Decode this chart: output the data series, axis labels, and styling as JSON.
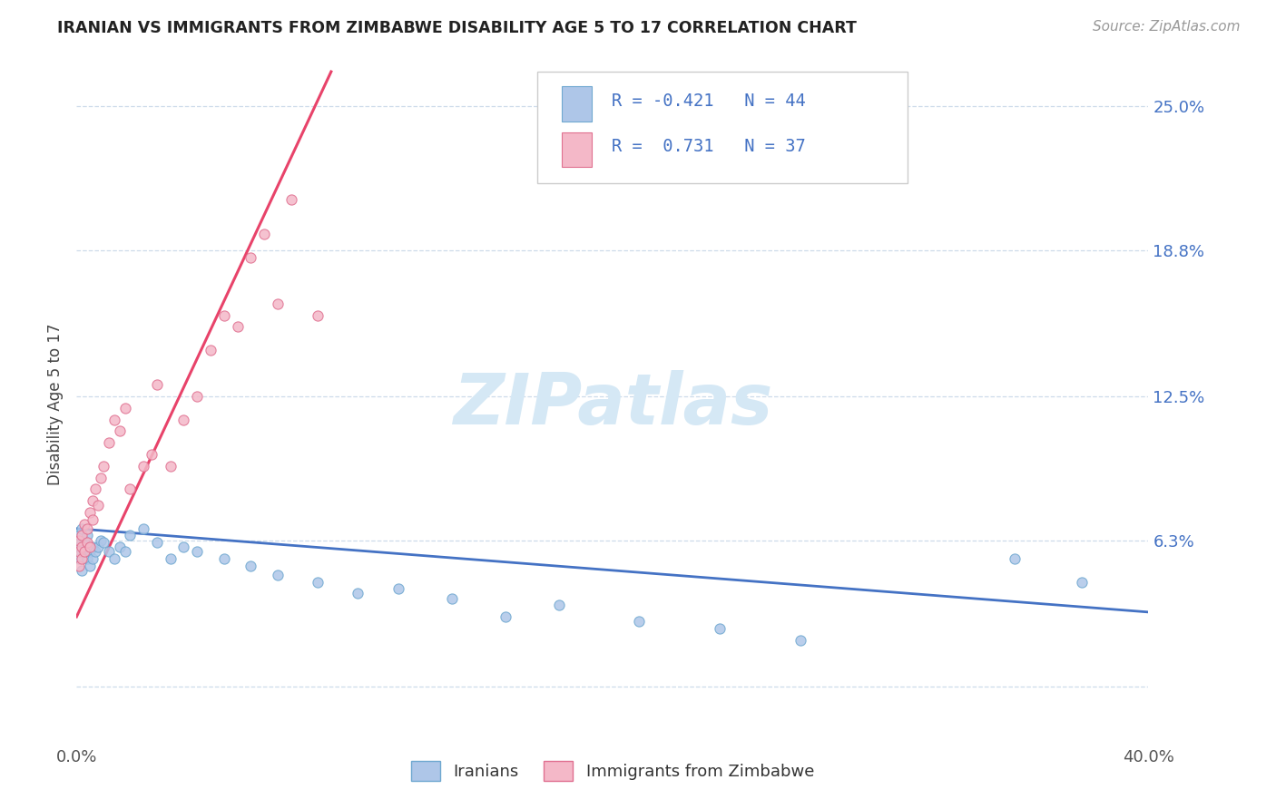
{
  "title": "IRANIAN VS IMMIGRANTS FROM ZIMBABWE DISABILITY AGE 5 TO 17 CORRELATION CHART",
  "source": "Source: ZipAtlas.com",
  "ylabel": "Disability Age 5 to 17",
  "iranians_color": "#aec6e8",
  "iranians_edge": "#6fa8d0",
  "zimbabwe_color": "#f4b8c8",
  "zimbabwe_edge": "#e07090",
  "line_iranian_color": "#4472c4",
  "line_zimbabwe_color": "#e8436a",
  "watermark_color": "#d5e8f5",
  "text_color_blue": "#4472c4",
  "title_color": "#222222",
  "source_color": "#999999",
  "grid_color": "#c8d8e8",
  "xmin": 0.0,
  "xmax": 0.4,
  "ymin": -0.025,
  "ymax": 0.268,
  "ytick_values": [
    0.0,
    0.063,
    0.125,
    0.188,
    0.25
  ],
  "ytick_labels": [
    "",
    "6.3%",
    "12.5%",
    "18.8%",
    "25.0%"
  ],
  "xtick_values": [
    0.0,
    0.4
  ],
  "xtick_labels": [
    "0.0%",
    "40.0%"
  ],
  "iranians_x": [
    0.001,
    0.001,
    0.001,
    0.002,
    0.002,
    0.002,
    0.002,
    0.003,
    0.003,
    0.003,
    0.004,
    0.004,
    0.005,
    0.005,
    0.006,
    0.006,
    0.007,
    0.008,
    0.009,
    0.01,
    0.012,
    0.014,
    0.016,
    0.018,
    0.02,
    0.025,
    0.03,
    0.035,
    0.04,
    0.045,
    0.055,
    0.065,
    0.075,
    0.09,
    0.105,
    0.12,
    0.14,
    0.16,
    0.18,
    0.21,
    0.24,
    0.27,
    0.35,
    0.375
  ],
  "iranians_y": [
    0.06,
    0.055,
    0.065,
    0.058,
    0.062,
    0.068,
    0.05,
    0.06,
    0.058,
    0.063,
    0.055,
    0.065,
    0.058,
    0.052,
    0.06,
    0.055,
    0.058,
    0.06,
    0.063,
    0.062,
    0.058,
    0.055,
    0.06,
    0.058,
    0.065,
    0.068,
    0.062,
    0.055,
    0.06,
    0.058,
    0.055,
    0.052,
    0.048,
    0.045,
    0.04,
    0.042,
    0.038,
    0.03,
    0.035,
    0.028,
    0.025,
    0.02,
    0.055,
    0.045
  ],
  "zimbabwe_x": [
    0.001,
    0.001,
    0.001,
    0.002,
    0.002,
    0.002,
    0.003,
    0.003,
    0.004,
    0.004,
    0.005,
    0.005,
    0.006,
    0.006,
    0.007,
    0.008,
    0.009,
    0.01,
    0.012,
    0.014,
    0.016,
    0.018,
    0.02,
    0.025,
    0.028,
    0.03,
    0.035,
    0.04,
    0.045,
    0.05,
    0.055,
    0.06,
    0.065,
    0.07,
    0.075,
    0.08,
    0.09
  ],
  "zimbabwe_y": [
    0.058,
    0.052,
    0.063,
    0.06,
    0.055,
    0.065,
    0.058,
    0.07,
    0.062,
    0.068,
    0.075,
    0.06,
    0.08,
    0.072,
    0.085,
    0.078,
    0.09,
    0.095,
    0.105,
    0.115,
    0.11,
    0.12,
    0.085,
    0.095,
    0.1,
    0.13,
    0.095,
    0.115,
    0.125,
    0.145,
    0.16,
    0.155,
    0.185,
    0.195,
    0.165,
    0.21,
    0.16
  ],
  "iranian_trend_x": [
    0.0,
    0.4
  ],
  "iranian_trend_y": [
    0.068,
    0.032
  ],
  "zimbabwe_trend_x": [
    0.0,
    0.095
  ],
  "zimbabwe_trend_y": [
    0.03,
    0.265
  ],
  "legend_r1": "R = -0.421   N = 44",
  "legend_r2": "R =  0.731   N = 37",
  "bottom_legend": [
    "Iranians",
    "Immigrants from Zimbabwe"
  ]
}
